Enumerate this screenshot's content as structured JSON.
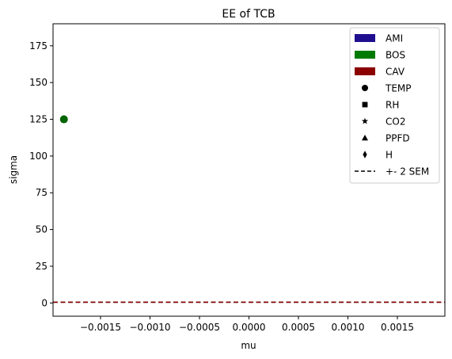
{
  "chart_data": {
    "type": "scatter",
    "title": "EE of TCB",
    "xlabel": "mu",
    "ylabel": "sigma",
    "xlim": [
      -0.00198,
      0.00198
    ],
    "ylim": [
      -9,
      190
    ],
    "x_ticks": [
      -0.0015,
      -0.001,
      -0.0005,
      0.0,
      0.0005,
      0.001,
      0.0015
    ],
    "x_tick_labels": [
      "−0.0015",
      "−0.0010",
      "−0.0005",
      "0.0000",
      "0.0005",
      "0.0010",
      "0.0015"
    ],
    "y_ticks": [
      0,
      25,
      50,
      75,
      100,
      125,
      150,
      175
    ],
    "y_tick_labels": [
      "0",
      "25",
      "50",
      "75",
      "100",
      "125",
      "150",
      "175"
    ],
    "grid": false,
    "points": [
      {
        "x": -0.00187,
        "y": 125,
        "color": "#006400",
        "marker": "circle"
      }
    ],
    "sem_lines": [
      {
        "y": 0.5,
        "color": "#000000"
      },
      {
        "y": 0.5,
        "color": "#8b0000"
      }
    ],
    "legend": {
      "placement": "top-right",
      "entries": [
        {
          "label": "AMI",
          "kind": "patch",
          "color": "#1f0f8f"
        },
        {
          "label": "BOS",
          "kind": "patch",
          "color": "#007a00"
        },
        {
          "label": "CAV",
          "kind": "patch",
          "color": "#8b0000"
        },
        {
          "label": "TEMP",
          "kind": "marker",
          "marker": "circle",
          "color": "#000000"
        },
        {
          "label": "RH",
          "kind": "marker",
          "marker": "square",
          "color": "#000000"
        },
        {
          "label": "CO2",
          "kind": "marker",
          "marker": "star",
          "color": "#000000"
        },
        {
          "label": "PPFD",
          "kind": "marker",
          "marker": "triangle",
          "color": "#000000"
        },
        {
          "label": "H",
          "kind": "marker",
          "marker": "diamond",
          "color": "#000000"
        },
        {
          "label": "+- 2 SEM",
          "kind": "line",
          "color": "#000000"
        }
      ]
    }
  }
}
